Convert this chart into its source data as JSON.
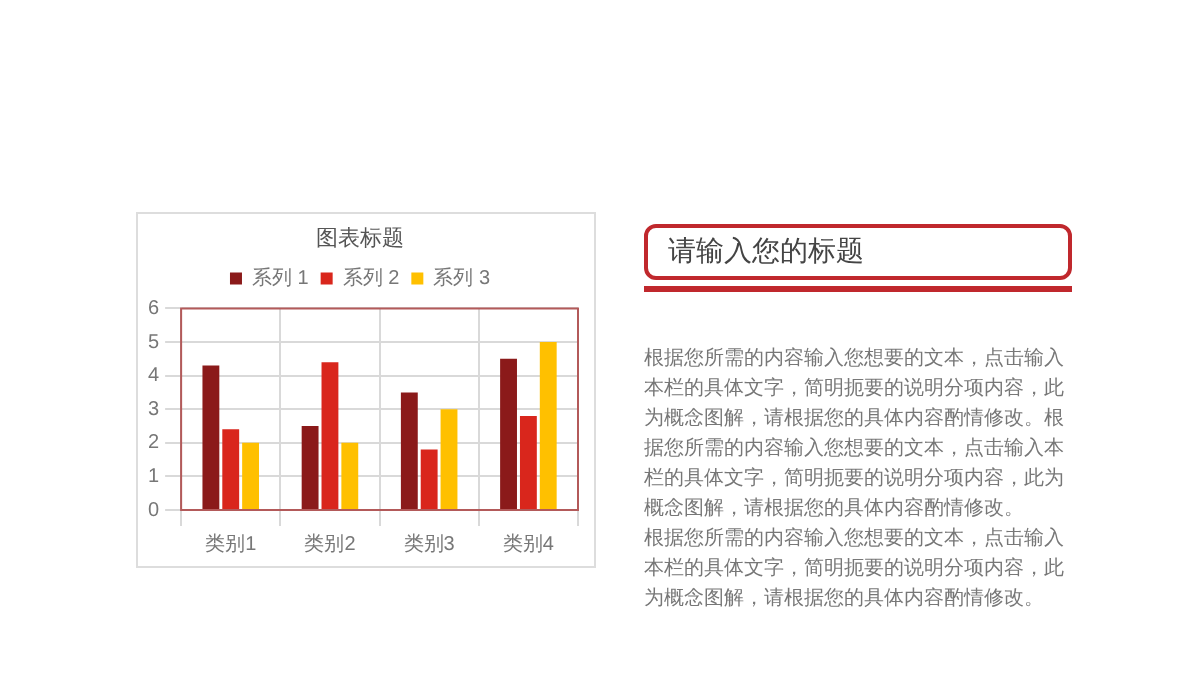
{
  "chart_data": [
    {
      "type": "bar",
      "title": "图表标题",
      "categories": [
        "类别1",
        "类别2",
        "类别3",
        "类别4"
      ],
      "series": [
        {
          "name": "系列 1",
          "color": "#8b1a1a",
          "values": [
            4.3,
            2.5,
            3.5,
            4.5
          ]
        },
        {
          "name": "系列 2",
          "color": "#d9261c",
          "values": [
            2.4,
            4.4,
            1.8,
            2.8
          ]
        },
        {
          "name": "系列 3",
          "color": "#ffc000",
          "values": [
            2,
            2,
            3,
            5
          ]
        }
      ],
      "ylim": [
        0,
        6
      ],
      "yticks": [
        0,
        1,
        2,
        3,
        4,
        5,
        6
      ],
      "grid": true,
      "legend": "top"
    },
    {
      "type": "other",
      "title": "请输入您的标题",
      "annotations": [
        "根据您所需的内容输入您想要的文本，点击输入本栏的具体文字，简明扼要的说明分项内容，此为概念图解，请根据您的具体内容酌情修改。根据您所需的内容输入您想要的文本，点击输入本栏的具体文字，简明扼要的说明分项内容，此为概念图解，请根据您的具体内容酌情修改。",
        "根据您所需的内容输入您想要的文本，点击输入本栏的具体文字，简明扼要的说明分项内容，此为概念图解，请根据您的具体内容酌情修改。"
      ]
    }
  ]
}
